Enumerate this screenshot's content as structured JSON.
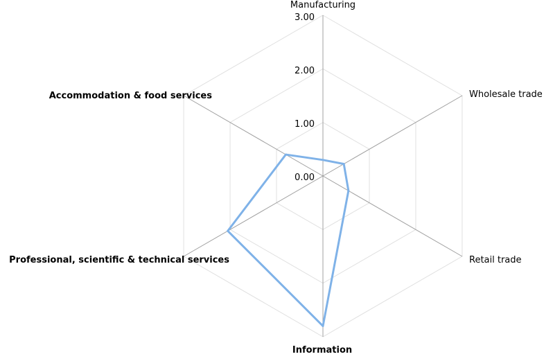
{
  "chart_data": {
    "type": "radar",
    "categories": [
      "Manufacturing",
      "Wholesale trade",
      "Retail trade",
      "Information",
      "Professional,  scientific & technical services",
      "Accommodation & food services"
    ],
    "bold_categories": [
      false,
      false,
      false,
      true,
      true,
      true
    ],
    "series": [
      {
        "values": [
          0.3,
          0.45,
          0.55,
          2.8,
          2.05,
          0.8
        ]
      }
    ],
    "rmax": 3.0,
    "ticks": [
      "0.00",
      "1.00",
      "2.00",
      "3.00"
    ],
    "tick_values": [
      0,
      1,
      2,
      3
    ],
    "grid": true,
    "colors": {
      "series": "#7fb2e8",
      "axis": "#a0a0a0",
      "grid": "#e0e0e0"
    }
  }
}
